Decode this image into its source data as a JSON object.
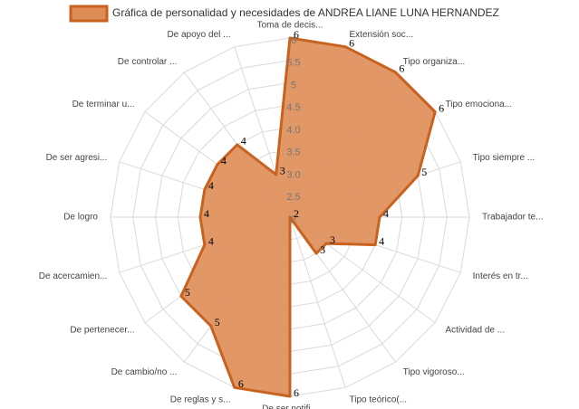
{
  "chart_data": {
    "type": "radar",
    "title": "Gráfica de personalidad y necesidades de ANDREA LIANE LUNA HERNANDEZ",
    "categories": [
      "Toma de decis...",
      "Extensión soc...",
      "Tipo organiza...",
      "Tipo emociona...",
      "Tipo siempre ...",
      "Trabajador te...",
      "Interés en tr...",
      "Actividad de ...",
      "Tipo vigoroso...",
      "Tipo teórico(...",
      "De ser notifi...",
      "De reglas y s...",
      "De cambio/no ...",
      "De pertenecer...",
      "De acercamien...",
      "De logro",
      "De ser agresi...",
      "De terminar u...",
      "De controlar ...",
      "De apoyo del ..."
    ],
    "values": [
      6,
      6,
      6,
      6,
      5,
      4,
      4,
      3,
      3,
      2,
      6,
      6,
      5,
      5,
      4,
      4,
      4,
      4,
      4,
      3
    ],
    "color": "#de8c55",
    "line_color": "#c8621e",
    "ylim": [
      2,
      6
    ],
    "yticks": [
      2,
      2.5,
      {
        "value": 3,
        "label": "3.0"
      },
      3.5,
      {
        "value": 4,
        "label": "4.0"
      },
      4.5,
      5,
      5.5,
      6
    ],
    "grid": true
  }
}
